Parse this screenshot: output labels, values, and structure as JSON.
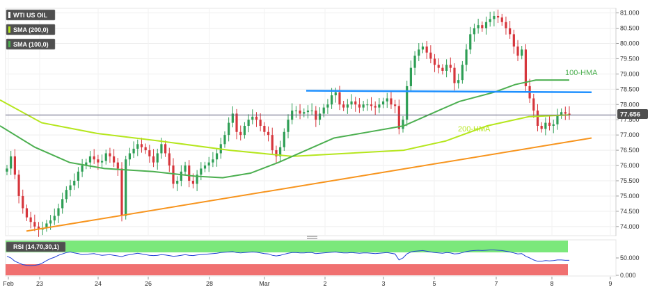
{
  "chart_data": [
    {
      "type": "candlestick",
      "legend": [
        {
          "label": "WTI US OIL",
          "swatch": "#4f4f4f"
        },
        {
          "label": "SMA (200,0)",
          "swatch": "#b5e61d"
        },
        {
          "label": "SMA (100,0)",
          "swatch": "#4caf50"
        }
      ],
      "x_ticks": [
        "Feb",
        "23",
        "24",
        "26",
        "28",
        "Mar",
        "2",
        "3",
        "5",
        "7",
        "8",
        "9"
      ],
      "y_ticks": [
        "74.000",
        "74.500",
        "75.000",
        "75.500",
        "76.000",
        "76.500",
        "77.000",
        "77.500",
        "78.000",
        "78.500",
        "79.000",
        "79.500",
        "80.000",
        "80.500",
        "81.000"
      ],
      "ylim": [
        73.7,
        81.15
      ],
      "last_price": {
        "label": "77.656",
        "value": 77.656,
        "color": "#4f4f4f"
      },
      "annotations": [
        {
          "text": "100-HMA",
          "value": 78.8,
          "color": "#4caf50"
        },
        {
          "text": "200-HMA",
          "value": 77.1,
          "color": "#b5e61d"
        }
      ],
      "close": [
        75.9,
        76.3,
        75.7,
        75.0,
        74.6,
        74.3,
        74.15,
        74.0,
        73.9,
        73.95,
        74.1,
        74.2,
        74.35,
        74.6,
        74.9,
        75.2,
        75.35,
        75.5,
        75.8,
        76.0,
        76.1,
        76.3,
        76.2,
        76.1,
        76.15,
        76.4,
        76.3,
        76.1,
        75.9,
        74.35,
        76.2,
        76.4,
        76.55,
        76.7,
        76.6,
        76.5,
        76.3,
        76.1,
        76.4,
        76.7,
        76.4,
        76.0,
        75.4,
        75.5,
        75.8,
        76.0,
        75.5,
        75.4,
        75.7,
        75.9,
        76.0,
        76.1,
        76.2,
        76.4,
        76.7,
        77.0,
        77.4,
        77.7,
        77.1,
        77.0,
        77.3,
        77.5,
        77.6,
        77.5,
        77.3,
        77.1,
        77.0,
        76.5,
        76.3,
        76.6,
        77.1,
        77.5,
        77.8,
        77.8,
        77.7,
        77.75,
        77.8,
        77.8,
        77.5,
        77.7,
        77.9,
        78.0,
        78.3,
        78.4,
        78.0,
        77.9,
        78.0,
        78.1,
        78.0,
        77.9,
        78.0,
        78.0,
        77.95,
        77.9,
        78.0,
        78.1,
        78.2,
        78.0,
        77.95,
        77.2,
        77.5,
        78.6,
        79.2,
        79.6,
        79.8,
        79.9,
        79.7,
        79.5,
        79.3,
        79.2,
        79.1,
        79.3,
        79.2,
        78.7,
        78.8,
        79.3,
        79.8,
        80.3,
        80.5,
        80.6,
        80.5,
        80.7,
        80.8,
        80.9,
        80.85,
        80.7,
        80.5,
        80.3,
        79.9,
        79.6,
        79.8,
        78.6,
        78.2,
        77.8,
        77.3,
        77.2,
        77.4,
        77.3,
        77.35,
        77.65,
        77.75,
        77.7,
        77.65
      ],
      "sma200": [
        [
          0,
          78.15
        ],
        [
          60,
          77.4
        ],
        [
          140,
          77.05
        ],
        [
          230,
          76.8
        ],
        [
          330,
          76.5
        ],
        [
          420,
          76.3
        ],
        [
          500,
          76.4
        ],
        [
          580,
          76.5
        ],
        [
          640,
          76.8
        ],
        [
          700,
          77.3
        ],
        [
          760,
          77.6
        ],
        [
          818,
          77.66
        ]
      ],
      "sma100": [
        [
          0,
          77.3
        ],
        [
          50,
          76.6
        ],
        [
          100,
          76.1
        ],
        [
          150,
          75.9
        ],
        [
          220,
          75.8
        ],
        [
          280,
          75.65
        ],
        [
          320,
          75.6
        ],
        [
          360,
          75.75
        ],
        [
          400,
          76.1
        ],
        [
          440,
          76.5
        ],
        [
          480,
          76.9
        ],
        [
          530,
          77.1
        ],
        [
          580,
          77.3
        ],
        [
          620,
          77.7
        ],
        [
          660,
          78.1
        ],
        [
          710,
          78.4
        ],
        [
          740,
          78.65
        ],
        [
          770,
          78.8
        ],
        [
          818,
          78.8
        ]
      ],
      "support_line": [
        [
          38,
          73.85
        ],
        [
          850,
          76.9
        ]
      ],
      "resistance_line": [
        [
          440,
          78.45
        ],
        [
          850,
          78.4
        ]
      ],
      "last_price_line": 77.656
    },
    {
      "type": "line",
      "legend": [
        {
          "label": "RSI (14,70,30,1)"
        }
      ],
      "y_ticks": [
        "0.000",
        "50.000"
      ],
      "overbought_fill": "#7be87b",
      "oversold_fill": "#f07070",
      "values": [
        55,
        50,
        40,
        35,
        30,
        28,
        27,
        28,
        30,
        35,
        42,
        48,
        52,
        58,
        62,
        66,
        68,
        65,
        63,
        60,
        61,
        62,
        63,
        60,
        58,
        59,
        60,
        58,
        56,
        54,
        58,
        60,
        62,
        64,
        62,
        60,
        58,
        57,
        58,
        60,
        59,
        57,
        55,
        56,
        58,
        60,
        58,
        57,
        59,
        60,
        61,
        62,
        63,
        64,
        66,
        67,
        68,
        69,
        66,
        65,
        66,
        67,
        68,
        67,
        65,
        63,
        62,
        58,
        56,
        58,
        61,
        64,
        66,
        66,
        65,
        65,
        66,
        66,
        63,
        64,
        65,
        66,
        67,
        68,
        66,
        65,
        65,
        66,
        65,
        64,
        65,
        65,
        64,
        63,
        64,
        65,
        66,
        64,
        62,
        44,
        50,
        62,
        68,
        70,
        71,
        72,
        70,
        68,
        66,
        65,
        64,
        66,
        65,
        62,
        63,
        66,
        69,
        71,
        72,
        73,
        72,
        73,
        74,
        74,
        73,
        72,
        70,
        68,
        65,
        62,
        63,
        55,
        50,
        44,
        40,
        40,
        42,
        41,
        42,
        44,
        44,
        43,
        43
      ]
    }
  ]
}
